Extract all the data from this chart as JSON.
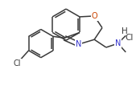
{
  "bg_color": "#ffffff",
  "bond_color": "#3a3a3a",
  "atom_colors": {
    "O": "#cc4400",
    "N": "#3333cc",
    "Cl_label": "#3a3a3a",
    "H_label": "#3a3a3a"
  },
  "figsize": [
    1.69,
    1.17
  ],
  "dpi": 100,
  "lw": 1.1
}
